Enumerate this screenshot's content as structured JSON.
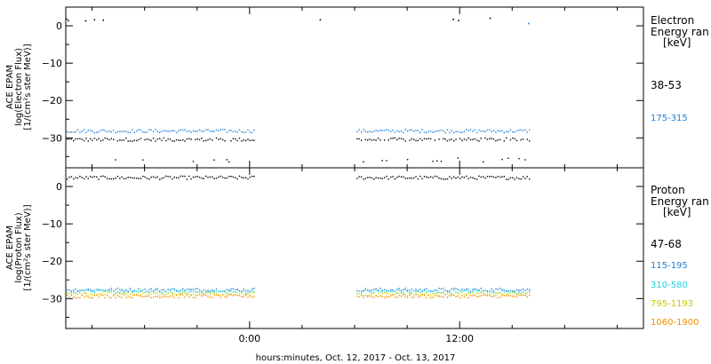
{
  "chart_data": [
    {
      "type": "scatter",
      "title": "",
      "ylabel_lines": [
        "ACE EPAM",
        "log(Electron Flux)",
        "[1/(cm²s ster MeV)]"
      ],
      "ylim": [
        -38,
        5
      ],
      "yticks": [
        0,
        -10,
        -20,
        -30
      ],
      "ytick_labels": [
        "0",
        "−10",
        "−20",
        "−30"
      ],
      "legend_title": [
        "Electron",
        "Energy ran",
        "[keV]"
      ],
      "legend_position": "right",
      "series": [
        {
          "name": "38-53",
          "color": "#000000",
          "level": -30.3,
          "alt_level": -35.8,
          "top_values": [
            [
              -10.5,
              2.0
            ],
            [
              -10.4,
              1.6
            ],
            [
              -9.4,
              1.5
            ],
            [
              -8.9,
              1.8
            ],
            [
              -8.4,
              1.7
            ],
            [
              4.0,
              1.8
            ],
            [
              11.6,
              1.9
            ],
            [
              11.9,
              1.6
            ],
            [
              13.7,
              2.2
            ]
          ]
        },
        {
          "name": "175-315",
          "color": "#1e7fd6",
          "level": -28.0,
          "alt_level": null,
          "top_values": [
            [
              15.9,
              0.8
            ]
          ]
        }
      ]
    },
    {
      "type": "scatter",
      "title": "",
      "ylabel_lines": [
        "ACE EPAM",
        "log(Proton Flux)",
        "[1/(cm²s ster MeV)]"
      ],
      "ylim": [
        -38,
        5
      ],
      "yticks": [
        0,
        -10,
        -20,
        -30
      ],
      "ytick_labels": [
        "0",
        "−10",
        "−20",
        "−30"
      ],
      "legend_title": [
        "Proton",
        "Energy ran",
        "[keV]"
      ],
      "legend_position": "right",
      "series": [
        {
          "name": "47-68",
          "color": "#000000",
          "level": 2.5
        },
        {
          "name": "115-195",
          "color": "#1e7fd6",
          "level": -27.5
        },
        {
          "name": "310-580",
          "color": "#22d0d8",
          "level": -28.0
        },
        {
          "name": "795-1193",
          "color": "#d8d800",
          "level": -28.6
        },
        {
          "name": "1060-1900",
          "color": "#f28c00",
          "level": -29.2
        }
      ]
    }
  ],
  "x_axis": {
    "xlim_hours": [
      -10.5,
      22.5
    ],
    "data_gap_hours": [
      [
        0.3,
        6.0
      ],
      [
        16.0,
        22.5
      ]
    ],
    "ticks": [
      {
        "hour": 0,
        "label": "0:00"
      },
      {
        "hour": 12,
        "label": "12:00"
      }
    ],
    "minor_tick_hours": [
      -9,
      -6,
      -3,
      3,
      6,
      9,
      15,
      18,
      21
    ],
    "xlabel": "hours:minutes, Oct. 12, 2017 - Oct. 13, 2017"
  },
  "colors": {
    "frame": "#000000",
    "background": "#ffffff"
  }
}
